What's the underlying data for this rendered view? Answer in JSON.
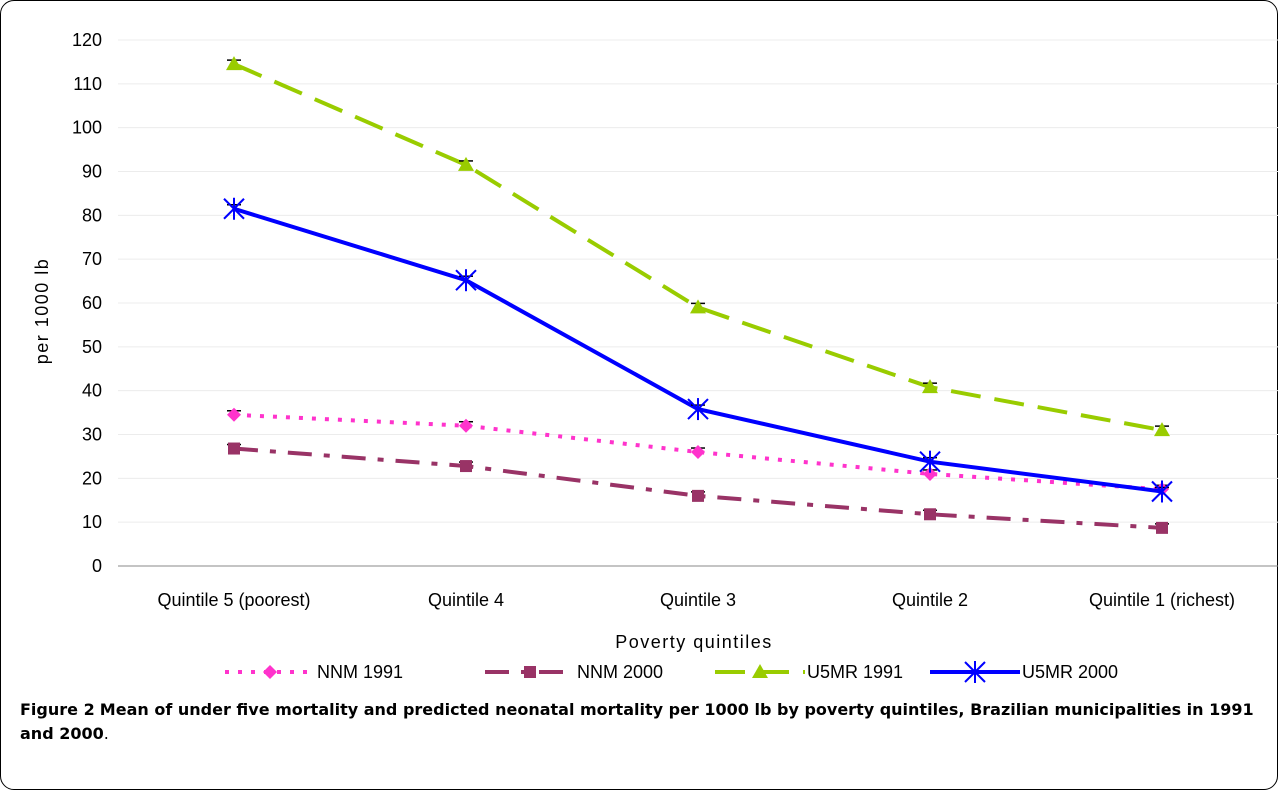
{
  "chart_data": {
    "type": "line",
    "categories": [
      "Quintile 5 (poorest)",
      "Quintile 4",
      "Quintile 3",
      "Quintile 2",
      "Quintile 1 (richest)"
    ],
    "series": [
      {
        "name": "NNM 1991",
        "values": [
          34.5,
          32,
          26,
          21,
          17.5
        ],
        "color": "#ff33cc",
        "dash": "4,9",
        "marker": "diamond",
        "width": 4
      },
      {
        "name": "NNM 2000",
        "values": [
          26.8,
          22.8,
          16,
          11.8,
          8.7
        ],
        "color": "#993366",
        "dash": "24,12,6,12",
        "marker": "square",
        "width": 4
      },
      {
        "name": "U5MR 1991",
        "values": [
          114.5,
          91.5,
          59,
          40.8,
          31
        ],
        "color": "#99cc00",
        "dash": "30,14",
        "marker": "triangle",
        "width": 4
      },
      {
        "name": "U5MR 2000",
        "values": [
          81.5,
          65.2,
          35.8,
          23.8,
          17
        ],
        "color": "#0000ff",
        "dash": "",
        "marker": "asterisk",
        "width": 4
      }
    ],
    "xlabel": "Poverty quintiles",
    "ylabel": "per 1000 lb",
    "ylim": [
      0,
      120
    ],
    "yticks": [
      0,
      10,
      20,
      30,
      40,
      50,
      60,
      70,
      80,
      90,
      100,
      110,
      120
    ],
    "grid": true,
    "legend": "bottom"
  },
  "caption": {
    "label": "Figure 2",
    "title": "Mean of under five mortality and predicted neonatal mortality per 1000 lb by poverty quintiles, Brazilian municipalities in 1991 and 2000",
    "end": "."
  }
}
